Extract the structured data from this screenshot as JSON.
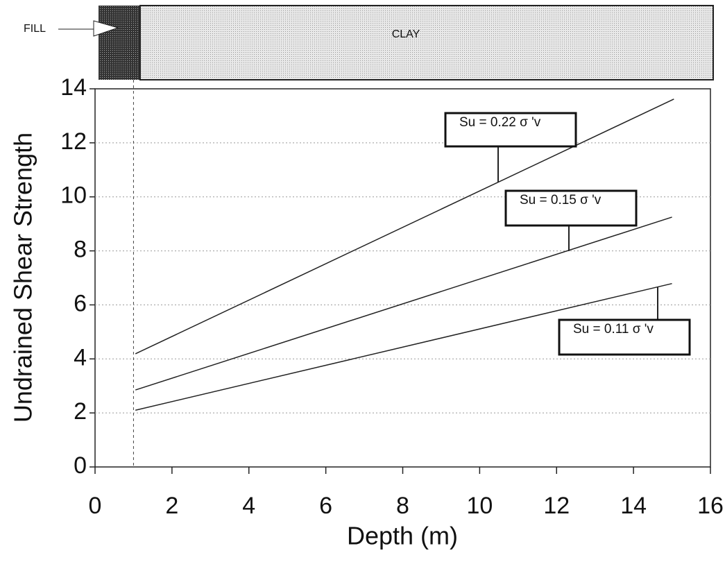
{
  "chart_data": {
    "type": "line",
    "x_label": "Depth (m)",
    "y_label": "Undrained Shear Strength",
    "layers": [
      "FILL",
      "CLAY"
    ],
    "layer_boundary": 1,
    "series": [
      {
        "name": "Su = 0.22 σ 'v",
        "color": "#222222",
        "x": [
          1.05,
          15.05
        ],
        "values": [
          4.19,
          13.62
        ]
      },
      {
        "name": "Su = 0.15 σ 'v",
        "color": "#222222",
        "x": [
          1.05,
          15.0
        ],
        "values": [
          2.85,
          9.25
        ]
      },
      {
        "name": "Su = 0.11 σ 'v",
        "color": "#222222",
        "x": [
          1.05,
          15.0
        ],
        "values": [
          2.1,
          6.79
        ]
      }
    ],
    "xlim": [
      0,
      16
    ],
    "xticks": [
      0,
      2,
      4,
      6,
      8,
      10,
      12,
      14,
      16
    ],
    "ylim": [
      0,
      14
    ],
    "yticks": [
      0,
      2,
      4,
      6,
      8,
      10,
      12,
      14
    ],
    "grid": true
  }
}
